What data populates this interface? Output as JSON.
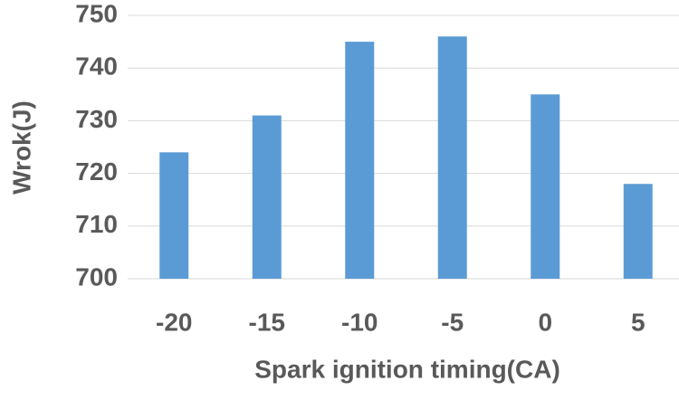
{
  "chart_data": {
    "type": "bar",
    "x_label": "Spark ignition timing(CA)",
    "y_label": "Wrok(J)",
    "categories": [
      "-20",
      "-15",
      "-10",
      "-5",
      "0",
      "5"
    ],
    "values": [
      724,
      731,
      745,
      746,
      735,
      718
    ],
    "color": "#5b9bd5",
    "ylim": [
      700,
      750
    ],
    "yticks": [
      700,
      710,
      720,
      730,
      740,
      750
    ],
    "grid": true
  }
}
